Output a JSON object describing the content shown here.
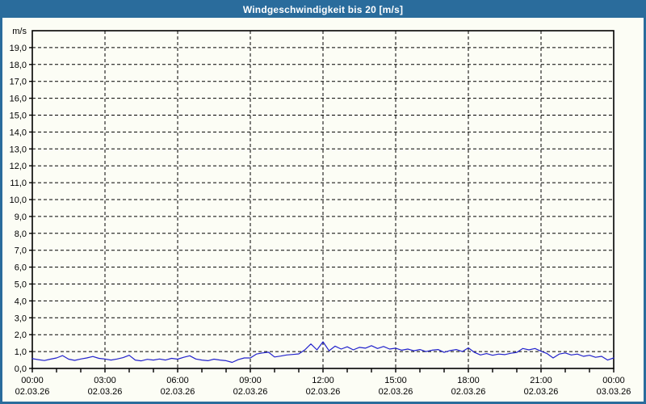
{
  "window": {
    "title": "Windgeschwindigkeit bis 20 [m/s]"
  },
  "colors": {
    "frame": "#2a6c9c",
    "background": "#fcfdf5",
    "line": "#2222cc",
    "axis": "#000000",
    "title_text": "#ffffff"
  },
  "chart_data": {
    "type": "line",
    "title": "Windgeschwindigkeit bis 20 [m/s]",
    "unit_label": "m/s",
    "ylim": [
      0,
      20
    ],
    "ytick_step": 1,
    "ytick_decimal_separator": ",",
    "grid": "dashed",
    "legend": "none",
    "x_start_hour": 0,
    "x_end_hour": 24,
    "x_step_hours": 0.25,
    "x_minor_tick_hours": 1,
    "x_major_grid_hours": 3,
    "xticks": [
      {
        "hour": 0,
        "time": "00:00",
        "date": "02.03.26"
      },
      {
        "hour": 3,
        "time": "03:00",
        "date": "02.03.26"
      },
      {
        "hour": 6,
        "time": "06:00",
        "date": "02.03.26"
      },
      {
        "hour": 9,
        "time": "09:00",
        "date": "02.03.26"
      },
      {
        "hour": 12,
        "time": "12:00",
        "date": "02.03.26"
      },
      {
        "hour": 15,
        "time": "15:00",
        "date": "02.03.26"
      },
      {
        "hour": 18,
        "time": "18:00",
        "date": "02.03.26"
      },
      {
        "hour": 21,
        "time": "21:00",
        "date": "02.03.26"
      },
      {
        "hour": 24,
        "time": "00:00",
        "date": "03.03.26"
      }
    ],
    "series": [
      {
        "name": "Windgeschwindigkeit",
        "color": "#2222cc",
        "values": [
          0.58,
          0.52,
          0.47,
          0.55,
          0.62,
          0.76,
          0.55,
          0.48,
          0.56,
          0.62,
          0.71,
          0.6,
          0.56,
          0.5,
          0.56,
          0.64,
          0.78,
          0.5,
          0.45,
          0.54,
          0.5,
          0.56,
          0.5,
          0.6,
          0.55,
          0.66,
          0.75,
          0.56,
          0.5,
          0.46,
          0.55,
          0.5,
          0.46,
          0.36,
          0.52,
          0.62,
          0.62,
          0.85,
          0.92,
          0.96,
          0.68,
          0.73,
          0.8,
          0.83,
          0.86,
          1.1,
          1.45,
          1.1,
          1.58,
          1.05,
          1.32,
          1.15,
          1.28,
          1.1,
          1.25,
          1.2,
          1.35,
          1.18,
          1.3,
          1.15,
          1.2,
          1.08,
          1.15,
          1.05,
          1.12,
          1.0,
          1.08,
          1.12,
          0.95,
          1.06,
          1.12,
          1.0,
          1.22,
          0.95,
          0.8,
          0.88,
          0.78,
          0.85,
          0.82,
          0.9,
          0.95,
          1.18,
          1.1,
          1.18,
          1.02,
          0.88,
          0.62,
          0.85,
          0.92,
          0.8,
          0.85,
          0.72,
          0.78,
          0.66,
          0.72,
          0.5,
          0.62
        ]
      }
    ]
  }
}
